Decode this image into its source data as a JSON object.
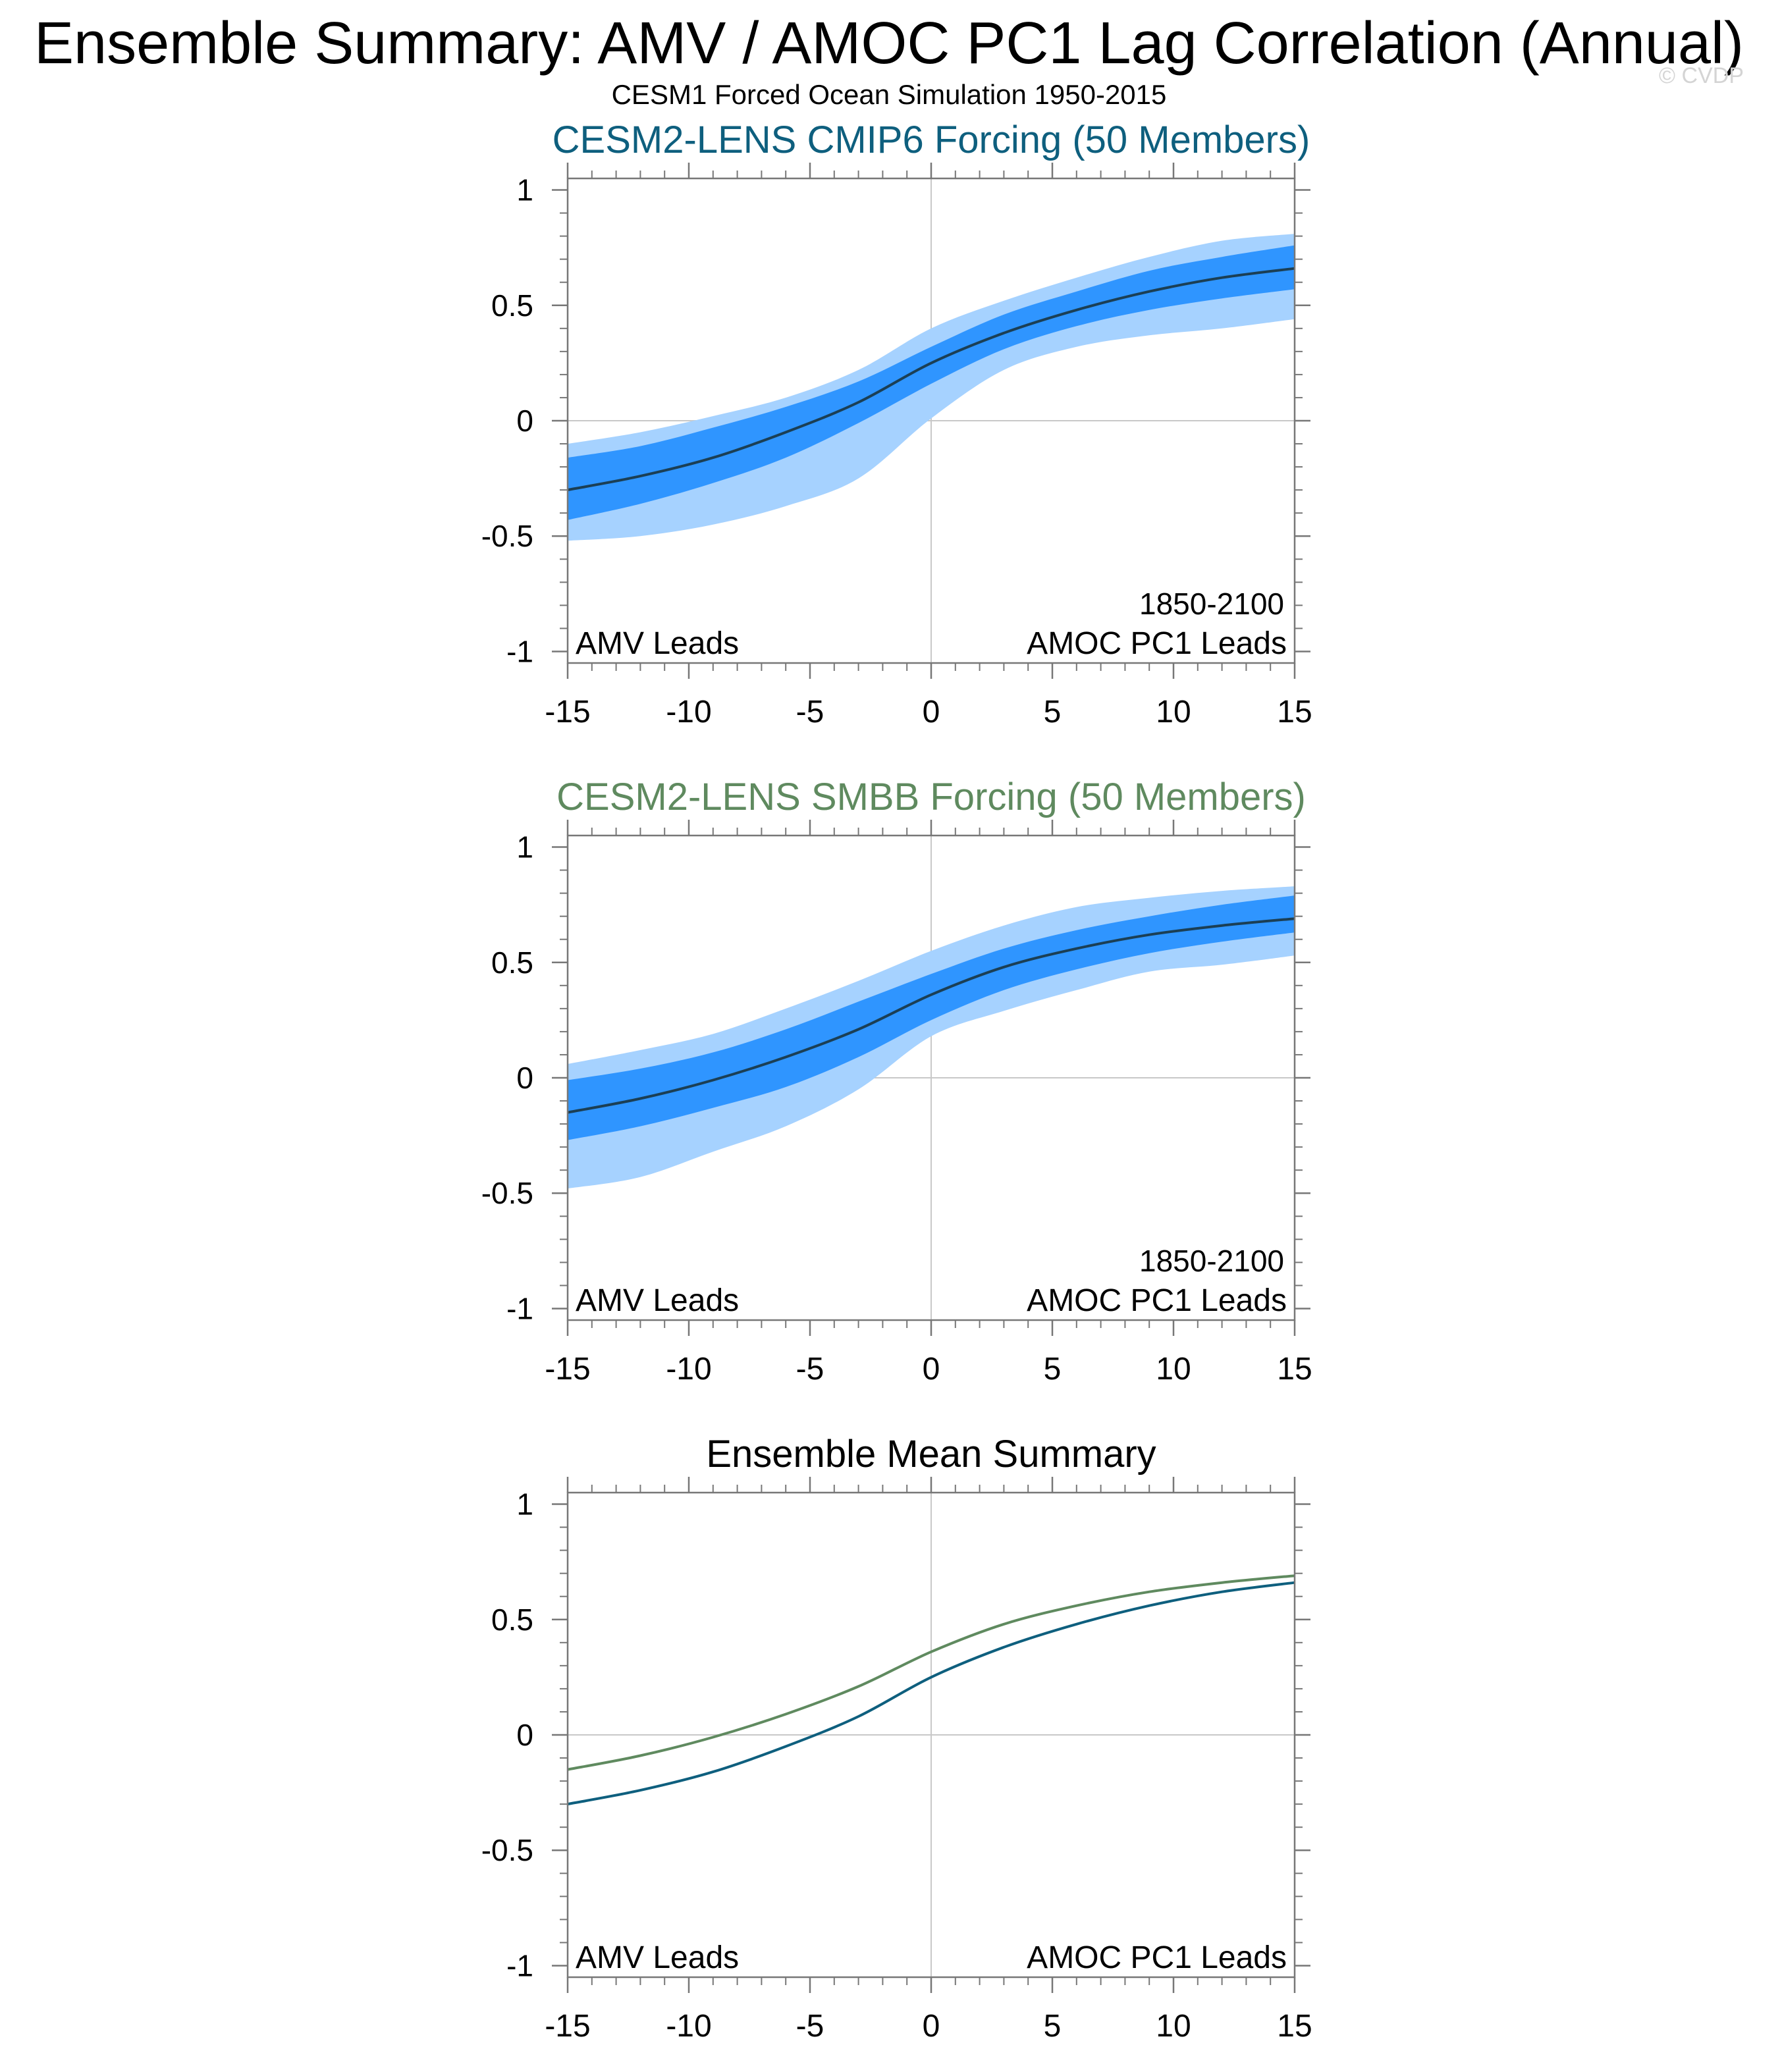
{
  "page": {
    "title": "Ensemble Summary: AMV / AMOC PC1 Lag Correlation (Annual)",
    "subtitle": "CESM1 Forced Ocean Simulation 1950-2015",
    "watermark": "© CVDP"
  },
  "colors": {
    "cmip6": "#0e5f7e",
    "smbb": "#5f8a5f",
    "band_outer": "#a6d2ff",
    "band_inner": "#2f95ff",
    "mean_line": "#1b3f55",
    "frame": "#777777",
    "gridline": "#c8c8c8"
  },
  "chart_data": [
    {
      "type": "area",
      "name": "cmip6-panel",
      "title": "CESM2-LENS CMIP6 Forcing (50 Members)",
      "title_color_key": "cmip6",
      "period_label": "1850-2100",
      "left_label": "AMV Leads",
      "right_label": "AMOC PC1 Leads",
      "xlabel": "",
      "ylabel": "",
      "xlim": [
        -15,
        15
      ],
      "ylim": [
        -1.05,
        1.05
      ],
      "x_ticks": [
        -15,
        -10,
        -5,
        0,
        5,
        10,
        15
      ],
      "x_tick_labels": [
        "-15",
        "-10",
        "-5",
        "0",
        "5",
        "10",
        "15"
      ],
      "y_ticks": [
        -1,
        -0.5,
        0,
        0.5,
        1
      ],
      "y_tick_labels": [
        "-1",
        "-0.5",
        "0",
        "0.5",
        "1"
      ],
      "x": [
        -15,
        -12,
        -9,
        -6,
        -3,
        0,
        3,
        6,
        9,
        12,
        15
      ],
      "series": [
        {
          "name": "ensemble mean",
          "values": [
            -0.3,
            -0.24,
            -0.16,
            -0.05,
            0.08,
            0.25,
            0.38,
            0.48,
            0.56,
            0.62,
            0.66
          ]
        },
        {
          "name": "outer range upper",
          "values": [
            -0.1,
            -0.05,
            0.02,
            0.1,
            0.22,
            0.4,
            0.52,
            0.62,
            0.71,
            0.78,
            0.81
          ]
        },
        {
          "name": "outer range lower",
          "values": [
            -0.52,
            -0.5,
            -0.45,
            -0.37,
            -0.25,
            0.01,
            0.22,
            0.32,
            0.37,
            0.4,
            0.44
          ]
        },
        {
          "name": "inner range upper",
          "values": [
            -0.16,
            -0.11,
            -0.03,
            0.06,
            0.17,
            0.32,
            0.46,
            0.56,
            0.65,
            0.71,
            0.76
          ]
        },
        {
          "name": "inner range lower",
          "values": [
            -0.43,
            -0.36,
            -0.27,
            -0.16,
            -0.01,
            0.16,
            0.31,
            0.41,
            0.48,
            0.53,
            0.57
          ]
        }
      ]
    },
    {
      "type": "area",
      "name": "smbb-panel",
      "title": "CESM2-LENS SMBB Forcing (50 Members)",
      "title_color_key": "smbb",
      "period_label": "1850-2100",
      "left_label": "AMV Leads",
      "right_label": "AMOC PC1 Leads",
      "xlabel": "",
      "ylabel": "",
      "xlim": [
        -15,
        15
      ],
      "ylim": [
        -1.05,
        1.05
      ],
      "x_ticks": [
        -15,
        -10,
        -5,
        0,
        5,
        10,
        15
      ],
      "x_tick_labels": [
        "-15",
        "-10",
        "-5",
        "0",
        "5",
        "10",
        "15"
      ],
      "y_ticks": [
        -1,
        -0.5,
        0,
        0.5,
        1
      ],
      "y_tick_labels": [
        "-1",
        "-0.5",
        "0",
        "0.5",
        "1"
      ],
      "x": [
        -15,
        -12,
        -9,
        -6,
        -3,
        0,
        3,
        6,
        9,
        12,
        15
      ],
      "series": [
        {
          "name": "ensemble mean",
          "values": [
            -0.15,
            -0.09,
            -0.01,
            0.09,
            0.21,
            0.36,
            0.48,
            0.56,
            0.62,
            0.66,
            0.69
          ]
        },
        {
          "name": "outer range upper",
          "values": [
            0.06,
            0.12,
            0.19,
            0.3,
            0.42,
            0.55,
            0.66,
            0.74,
            0.78,
            0.81,
            0.83
          ]
        },
        {
          "name": "outer range lower",
          "values": [
            -0.48,
            -0.43,
            -0.32,
            -0.21,
            -0.05,
            0.18,
            0.29,
            0.38,
            0.46,
            0.49,
            0.53
          ]
        },
        {
          "name": "inner range upper",
          "values": [
            -0.01,
            0.04,
            0.11,
            0.21,
            0.33,
            0.45,
            0.56,
            0.64,
            0.7,
            0.75,
            0.79
          ]
        },
        {
          "name": "inner range lower",
          "values": [
            -0.27,
            -0.21,
            -0.13,
            -0.04,
            0.09,
            0.25,
            0.38,
            0.47,
            0.54,
            0.59,
            0.63
          ]
        }
      ]
    },
    {
      "type": "line",
      "name": "mean-panel",
      "title": "Ensemble Mean Summary",
      "title_color_key": "black",
      "left_label": "AMV Leads",
      "right_label": "AMOC PC1 Leads",
      "xlabel": "",
      "ylabel": "",
      "xlim": [
        -15,
        15
      ],
      "ylim": [
        -1.05,
        1.05
      ],
      "x_ticks": [
        -15,
        -10,
        -5,
        0,
        5,
        10,
        15
      ],
      "x_tick_labels": [
        "-15",
        "-10",
        "-5",
        "0",
        "5",
        "10",
        "15"
      ],
      "y_ticks": [
        -1,
        -0.5,
        0,
        0.5,
        1
      ],
      "y_tick_labels": [
        "-1",
        "-0.5",
        "0",
        "0.5",
        "1"
      ],
      "x": [
        -15,
        -12,
        -9,
        -6,
        -3,
        0,
        3,
        6,
        9,
        12,
        15
      ],
      "series": [
        {
          "name": "CESM2-LENS CMIP6 Forcing",
          "color_key": "cmip6",
          "values": [
            -0.3,
            -0.24,
            -0.16,
            -0.05,
            0.08,
            0.25,
            0.38,
            0.48,
            0.56,
            0.62,
            0.66
          ]
        },
        {
          "name": "CESM2-LENS SMBB Forcing",
          "color_key": "smbb",
          "values": [
            -0.15,
            -0.09,
            -0.01,
            0.09,
            0.21,
            0.36,
            0.48,
            0.56,
            0.62,
            0.66,
            0.69
          ]
        }
      ]
    }
  ]
}
